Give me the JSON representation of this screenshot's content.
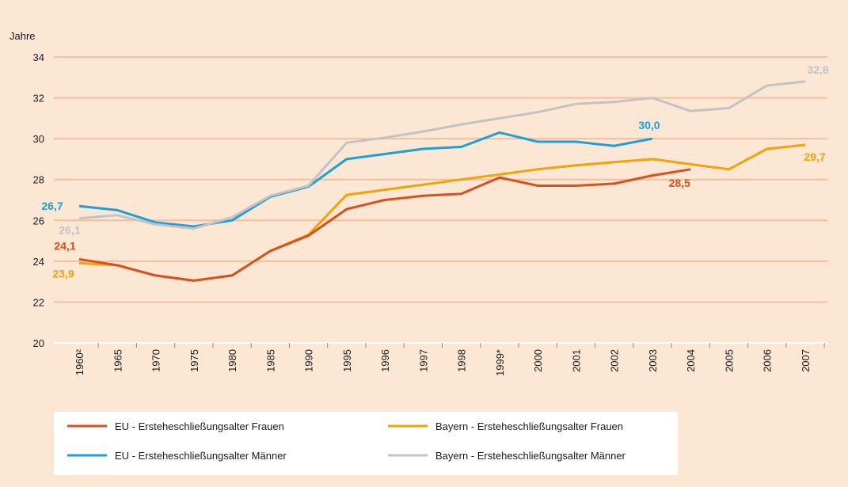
{
  "chart_data": {
    "type": "line",
    "y_label": "Jahre",
    "categories": [
      "1960²",
      "1965",
      "1970",
      "1975",
      "1980",
      "1985",
      "1990",
      "1995",
      "1996",
      "1997",
      "1998",
      "1999*",
      "2000",
      "2001",
      "2002",
      "2003",
      "2004",
      "2005",
      "2006",
      "2007"
    ],
    "series": [
      {
        "name": "EU - Ersteheschließungsalter Männer",
        "color": "#1ea0d7",
        "values": [
          26.7,
          26.5,
          25.9,
          25.7,
          26.0,
          27.15,
          27.65,
          29.0,
          29.25,
          29.5,
          29.6,
          30.3,
          29.85,
          29.85,
          29.65,
          30.0,
          null,
          null,
          null,
          null
        ],
        "value_labels": [
          "26,7",
          null,
          null,
          null,
          null,
          null,
          null,
          null,
          null,
          null,
          null,
          null,
          null,
          null,
          null,
          "30,0",
          null,
          null,
          null,
          null
        ]
      },
      {
        "name": "Bayern - Ersteheschließungsalter Männer",
        "color": "#c3c3c3",
        "values": [
          26.1,
          26.25,
          25.8,
          25.6,
          26.15,
          27.2,
          27.7,
          29.8,
          30.05,
          30.35,
          30.7,
          31.0,
          31.3,
          31.7,
          31.8,
          32.0,
          31.35,
          31.5,
          32.6,
          32.8
        ],
        "value_labels": [
          "26,1",
          null,
          null,
          null,
          null,
          null,
          null,
          null,
          null,
          null,
          null,
          null,
          null,
          null,
          null,
          null,
          null,
          null,
          null,
          "32,8"
        ]
      },
      {
        "name": "Bayern - Ersteheschließungsalter Frauen",
        "color": "#f0a30a",
        "values": [
          23.9,
          23.8,
          23.3,
          23.05,
          23.3,
          24.5,
          25.3,
          27.25,
          27.5,
          27.75,
          28.0,
          28.25,
          28.5,
          28.7,
          28.85,
          29.0,
          28.75,
          28.5,
          29.5,
          29.7
        ],
        "value_labels": [
          "23,9",
          null,
          null,
          null,
          null,
          null,
          null,
          null,
          null,
          null,
          null,
          null,
          null,
          null,
          null,
          null,
          null,
          null,
          null,
          "29,7"
        ]
      },
      {
        "name": "EU - Ersteheschließungsalter Frauen",
        "color": "#d9501e",
        "values": [
          24.1,
          23.8,
          23.3,
          23.05,
          23.3,
          24.5,
          25.25,
          26.55,
          27.0,
          27.2,
          27.3,
          28.1,
          27.7,
          27.7,
          27.8,
          28.2,
          28.5,
          null,
          null,
          null
        ],
        "value_labels": [
          "24,1",
          null,
          null,
          null,
          null,
          null,
          null,
          null,
          null,
          null,
          null,
          null,
          null,
          null,
          null,
          null,
          "28,5",
          null,
          null,
          null
        ]
      }
    ],
    "ylim": [
      20,
      34
    ],
    "yticks": [
      20,
      22,
      24,
      26,
      28,
      30,
      32,
      34
    ],
    "grid": true
  }
}
